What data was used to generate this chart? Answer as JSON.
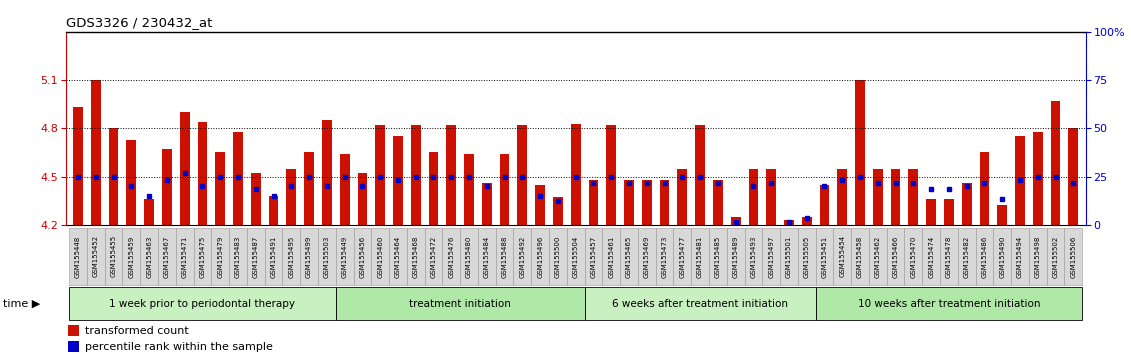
{
  "title": "GDS3326 / 230432_at",
  "samples": [
    "GSM155448",
    "GSM155452",
    "GSM155455",
    "GSM155459",
    "GSM155463",
    "GSM155467",
    "GSM155471",
    "GSM155475",
    "GSM155479",
    "GSM155483",
    "GSM155487",
    "GSM155491",
    "GSM155495",
    "GSM155499",
    "GSM155503",
    "GSM155449",
    "GSM155456",
    "GSM155460",
    "GSM155464",
    "GSM155468",
    "GSM155472",
    "GSM155476",
    "GSM155480",
    "GSM155484",
    "GSM155488",
    "GSM155492",
    "GSM155496",
    "GSM155500",
    "GSM155504",
    "GSM155457",
    "GSM155461",
    "GSM155465",
    "GSM155469",
    "GSM155473",
    "GSM155477",
    "GSM155481",
    "GSM155485",
    "GSM155489",
    "GSM155493",
    "GSM155497",
    "GSM155501",
    "GSM155505",
    "GSM155451",
    "GSM155454",
    "GSM155458",
    "GSM155462",
    "GSM155466",
    "GSM155470",
    "GSM155474",
    "GSM155478",
    "GSM155482",
    "GSM155486",
    "GSM155490",
    "GSM155494",
    "GSM155498",
    "GSM155502",
    "GSM155506"
  ],
  "red_values": [
    4.93,
    5.1,
    4.8,
    4.73,
    4.36,
    4.67,
    4.9,
    4.84,
    4.65,
    4.78,
    4.52,
    4.38,
    4.55,
    4.65,
    4.85,
    4.64,
    4.52,
    4.82,
    4.75,
    4.82,
    4.65,
    4.82,
    4.64,
    4.46,
    4.64,
    4.82,
    4.45,
    4.37,
    4.83,
    4.48,
    4.82,
    4.48,
    4.48,
    4.48,
    4.55,
    4.82,
    4.48,
    4.25,
    4.55,
    4.55,
    4.23,
    4.25,
    4.45,
    4.55,
    5.1,
    4.55,
    4.55,
    4.55,
    4.36,
    4.36,
    4.46,
    4.65,
    4.32,
    4.75,
    4.78,
    4.97,
    4.8
  ],
  "blue_values": [
    4.5,
    4.5,
    4.5,
    4.44,
    4.38,
    4.48,
    4.52,
    4.44,
    4.5,
    4.5,
    4.42,
    4.38,
    4.44,
    4.5,
    4.44,
    4.5,
    4.44,
    4.5,
    4.48,
    4.5,
    4.5,
    4.5,
    4.5,
    4.44,
    4.5,
    4.5,
    4.38,
    4.35,
    4.5,
    4.46,
    4.5,
    4.46,
    4.46,
    4.46,
    4.5,
    4.5,
    4.46,
    4.22,
    4.44,
    4.46,
    4.22,
    4.24,
    4.44,
    4.48,
    4.5,
    4.46,
    4.46,
    4.46,
    4.42,
    4.42,
    4.44,
    4.46,
    4.36,
    4.48,
    4.5,
    4.5,
    4.46
  ],
  "group_boundaries": [
    0,
    15,
    29,
    42,
    57
  ],
  "group_labels": [
    "1 week prior to periodontal therapy",
    "treatment initiation",
    "6 weeks after treatment initiation",
    "10 weeks after treatment initiation"
  ],
  "group_colors": [
    "#c8f0c0",
    "#b0e8a8",
    "#c8f0c0",
    "#b0e8a8"
  ],
  "ylim_left": [
    4.2,
    5.4
  ],
  "ylim_right": [
    0,
    100
  ],
  "yticks_left": [
    4.2,
    4.5,
    4.8,
    5.1
  ],
  "yticks_right": [
    0,
    25,
    50,
    75,
    100
  ],
  "hlines": [
    4.5,
    4.8,
    5.1
  ],
  "bar_color": "#cc1100",
  "blue_color": "#0000cc",
  "axis_color_left": "#cc0000",
  "axis_color_right": "#0000cc",
  "tick_box_color": "#d8d8d8",
  "tick_box_edge": "#999999"
}
